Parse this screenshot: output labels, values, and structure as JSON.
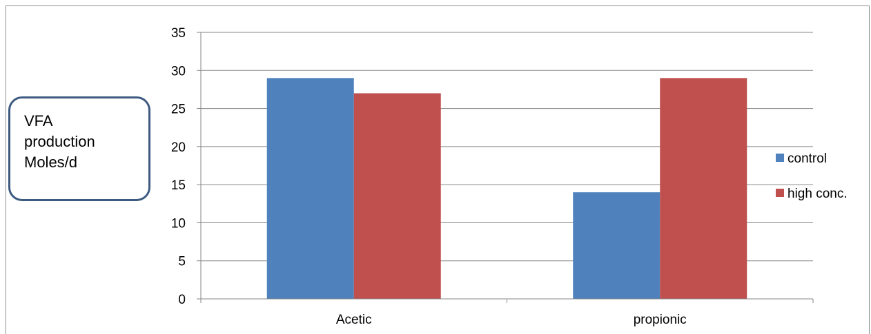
{
  "chart_data": {
    "type": "bar",
    "categories": [
      "Acetic",
      "propionic"
    ],
    "series": [
      {
        "name": "control",
        "values": [
          29,
          14
        ],
        "color": "#4f81bd"
      },
      {
        "name": "high conc.",
        "values": [
          27,
          29
        ],
        "color": "#c0504d"
      }
    ],
    "ylabel": "VFA\nproduction\nMoles/d",
    "ylim": [
      0,
      35
    ],
    "yticks": [
      0,
      5,
      10,
      15,
      20,
      25,
      30,
      35
    ],
    "grid": true,
    "legend": "right"
  }
}
